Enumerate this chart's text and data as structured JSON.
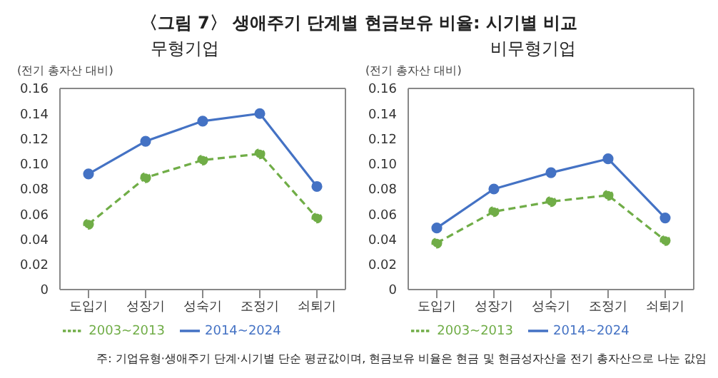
{
  "chart_data": [
    {
      "type": "line",
      "title": "〈그림 7〉 생애주기 단계별 현금보유 비율: 시기별 비교",
      "subtitle": "무형기업",
      "ylabel": "(전기 총자산 대비)",
      "categories": [
        "도입기",
        "성장기",
        "성숙기",
        "조정기",
        "쇠퇴기"
      ],
      "series": [
        {
          "name": "2003~2013",
          "color": "#70ad47",
          "line_style": "dashed",
          "values": [
            0.052,
            0.089,
            0.103,
            0.108,
            0.057
          ]
        },
        {
          "name": "2014~2024",
          "color": "#4472c4",
          "line_style": "solid",
          "values": [
            0.092,
            0.118,
            0.134,
            0.14,
            0.082
          ]
        }
      ],
      "ylim": [
        0,
        0.16
      ],
      "yticks": [
        0,
        {
          "value": 0.02,
          "label": "0.02"
        },
        {
          "value": 0.04,
          "label": "0.04"
        },
        {
          "value": 0.06,
          "label": "0.06"
        },
        {
          "value": 0.08,
          "label": "0.08"
        },
        {
          "value": 0.1,
          "label": "0.10"
        },
        {
          "value": 0.12,
          "label": "0.12"
        },
        {
          "value": 0.14,
          "label": "0.14"
        },
        {
          "value": 0.16,
          "label": "0.16"
        }
      ],
      "marker": "circle",
      "legend": "bottom",
      "grid": false
    },
    {
      "type": "line",
      "subtitle": "비무형기업",
      "ylabel": "(전기 총자산 대비)",
      "categories": [
        "도입기",
        "성장기",
        "성숙기",
        "조정기",
        "쇠퇴기"
      ],
      "series": [
        {
          "name": "2003~2013",
          "color": "#70ad47",
          "line_style": "dashed",
          "values": [
            0.037,
            0.062,
            0.07,
            0.075,
            0.039
          ]
        },
        {
          "name": "2014~2024",
          "color": "#4472c4",
          "line_style": "solid",
          "values": [
            0.049,
            0.08,
            0.093,
            0.104,
            0.057
          ]
        }
      ],
      "ylim": [
        0,
        0.16
      ],
      "yticks": [
        0,
        {
          "value": 0.02,
          "label": "0.02"
        },
        {
          "value": 0.04,
          "label": "0.04"
        },
        {
          "value": 0.06,
          "label": "0.06"
        },
        {
          "value": 0.08,
          "label": "0.08"
        },
        {
          "value": 0.1,
          "label": "0.10"
        },
        {
          "value": 0.12,
          "label": "0.12"
        },
        {
          "value": 0.14,
          "label": "0.14"
        },
        {
          "value": 0.16,
          "label": "0.16"
        }
      ],
      "marker": "circle",
      "legend": "bottom",
      "grid": false,
      "annotations": [
        "주: 기업유형·생애주기 단계·시기별 단순 평균값이며, 현금보유 비율은 현금 및 현금성자산을 전기 총자산으로 나눈 값임"
      ]
    }
  ]
}
